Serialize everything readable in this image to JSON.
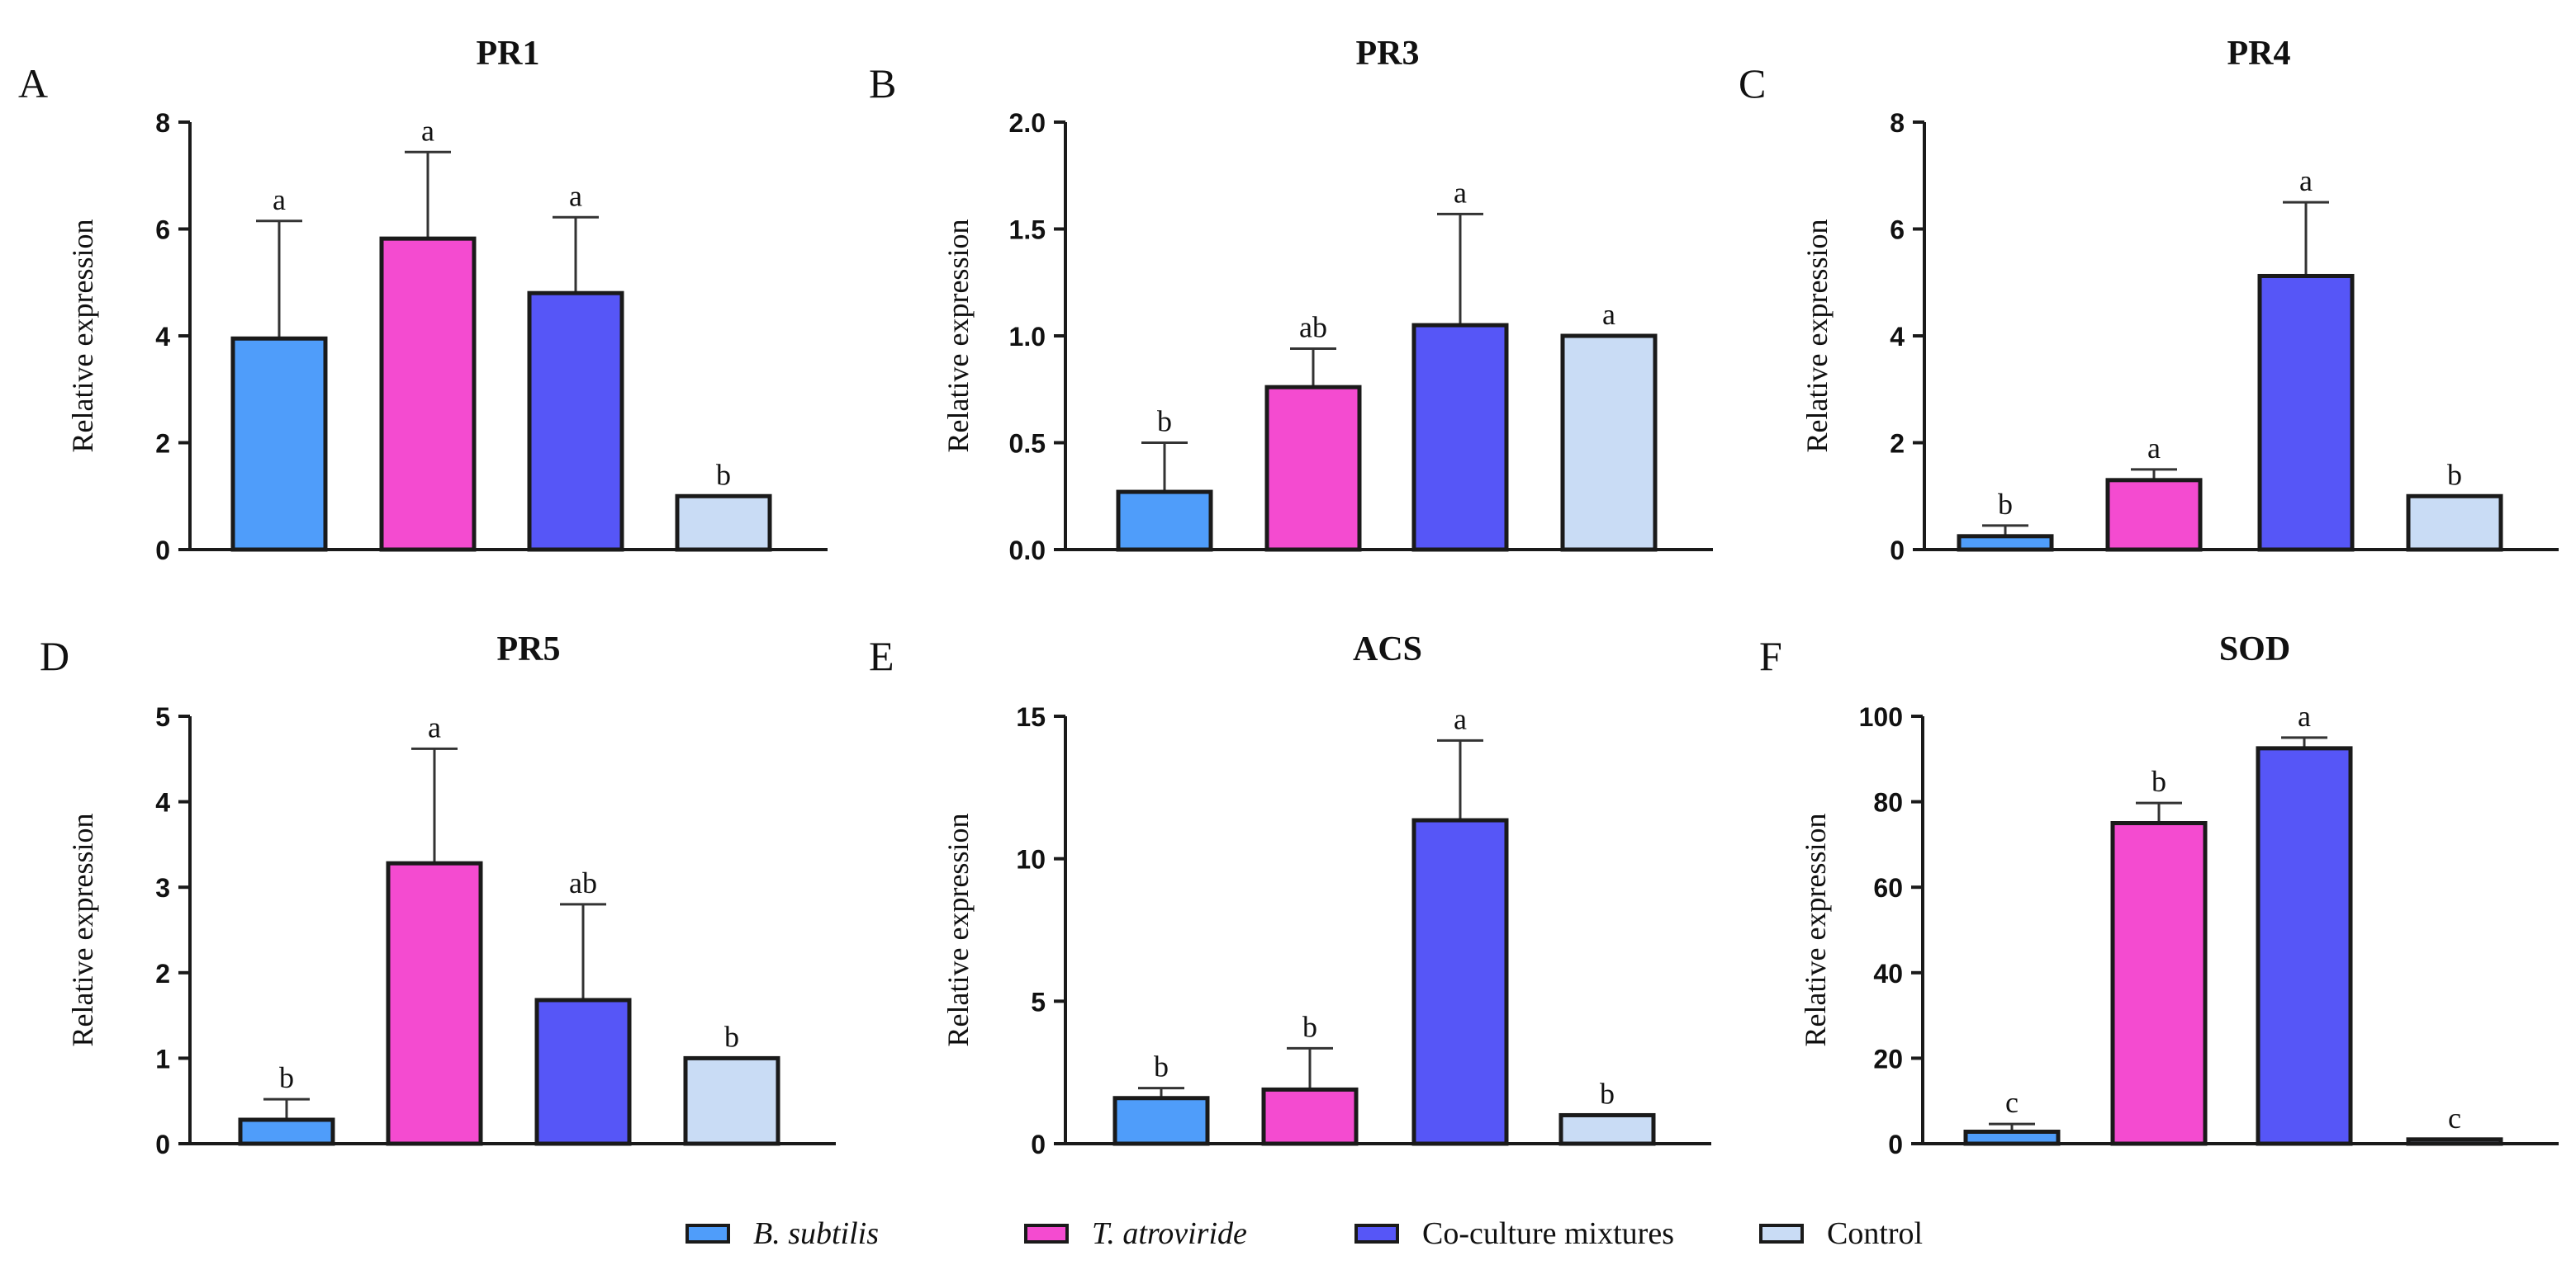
{
  "colors": {
    "B. subtilis": "#4f9dfa",
    "T. atroviride": "#f44bd0",
    "Co-culture mixtures": "#5656f7",
    "Control": "#c9dcf5",
    "stroke": "#1a1a1a"
  },
  "legend": {
    "items": [
      {
        "label": "B. subtilis",
        "italic": true
      },
      {
        "label": "T. atroviride",
        "italic": true
      },
      {
        "label": "Co-culture mixtures",
        "italic": false
      },
      {
        "label": "Control",
        "italic": false
      }
    ]
  },
  "chart_data": [
    {
      "panel": "A",
      "type": "bar",
      "title": "PR1",
      "ylabel": "Relative expression",
      "categories": [
        "B. subtilis",
        "T. atroviride",
        "Co-culture mixtures",
        "Control"
      ],
      "values": [
        3.95,
        5.82,
        4.8,
        1.0
      ],
      "errors": [
        2.2,
        1.62,
        1.42,
        0
      ],
      "letters": [
        "a",
        "a",
        "a",
        "b"
      ],
      "ylim": [
        0,
        8
      ],
      "yticks": [
        "0",
        "2",
        "4",
        "6",
        "8"
      ]
    },
    {
      "panel": "B",
      "type": "bar",
      "title": "PR3",
      "ylabel": "Relative expression",
      "categories": [
        "B. subtilis",
        "T. atroviride",
        "Co-culture mixtures",
        "Control"
      ],
      "values": [
        0.27,
        0.76,
        1.05,
        1.0
      ],
      "errors": [
        0.23,
        0.18,
        0.52,
        0
      ],
      "letters": [
        "b",
        "ab",
        "a",
        "a"
      ],
      "ylim": [
        0,
        2
      ],
      "yticks": [
        "0.0",
        "0.5",
        "1.0",
        "1.5",
        "2.0"
      ]
    },
    {
      "panel": "C",
      "type": "bar",
      "title": "PR4",
      "ylabel": "Relative expression",
      "categories": [
        "B. subtilis",
        "T. atroviride",
        "Co-culture mixtures",
        "Control"
      ],
      "values": [
        0.25,
        1.3,
        5.12,
        1.0
      ],
      "errors": [
        0.2,
        0.2,
        1.38,
        0
      ],
      "letters": [
        "b",
        "a",
        "a",
        "b"
      ],
      "ylim": [
        0,
        8
      ],
      "yticks": [
        "0",
        "2",
        "4",
        "6",
        "8"
      ]
    },
    {
      "panel": "D",
      "type": "bar",
      "title": "PR5",
      "ylabel": "Relative expression",
      "categories": [
        "B. subtilis",
        "T. atroviride",
        "Co-culture mixtures",
        "Control"
      ],
      "values": [
        0.28,
        3.28,
        1.68,
        1.0
      ],
      "errors": [
        0.24,
        1.34,
        1.12,
        0
      ],
      "letters": [
        "b",
        "a",
        "ab",
        "b"
      ],
      "ylim": [
        0,
        5
      ],
      "yticks": [
        "0",
        "1",
        "2",
        "3",
        "4",
        "5"
      ]
    },
    {
      "panel": "E",
      "type": "bar",
      "title": "ACS",
      "ylabel": "Relative expression",
      "categories": [
        "B. subtilis",
        "T. atroviride",
        "Co-culture mixtures",
        "Control"
      ],
      "values": [
        1.6,
        1.9,
        11.35,
        1.0
      ],
      "errors": [
        0.35,
        1.45,
        2.8,
        0
      ],
      "letters": [
        "b",
        "b",
        "a",
        "b"
      ],
      "ylim": [
        0,
        15
      ],
      "yticks": [
        "0",
        "5",
        "10",
        "15"
      ]
    },
    {
      "panel": "F",
      "type": "bar",
      "title": "SOD",
      "ylabel": "Relative expression",
      "categories": [
        "B. subtilis",
        "T. atroviride",
        "Co-culture mixtures",
        "Control"
      ],
      "values": [
        2.8,
        75.0,
        92.5,
        1.0
      ],
      "errors": [
        1.8,
        4.7,
        2.5,
        0
      ],
      "letters": [
        "c",
        "b",
        "a",
        "c"
      ],
      "ylim": [
        0,
        100
      ],
      "yticks": [
        "0",
        "20",
        "40",
        "60",
        "80",
        "100"
      ]
    }
  ]
}
